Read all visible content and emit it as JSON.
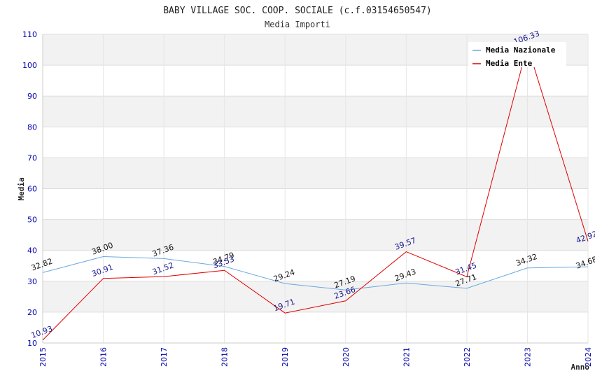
{
  "chart_data": {
    "type": "line",
    "title": "BABY VILLAGE SOC. COOP. SOCIALE (c.f.03154650547)",
    "subtitle": "Media Importi",
    "xlabel": "Anno",
    "ylabel": "Media",
    "x": [
      "2015",
      "2016",
      "2017",
      "2018",
      "2019",
      "2020",
      "2021",
      "2022",
      "2023",
      "2024"
    ],
    "ylim": [
      10,
      110
    ],
    "yticks": [
      10,
      20,
      30,
      40,
      50,
      60,
      70,
      80,
      90,
      100,
      110
    ],
    "ytick_labels": [
      "10",
      "20",
      "30",
      "40",
      "50",
      "60",
      "70",
      "80",
      "90",
      "100",
      "110"
    ],
    "grid": true,
    "legend_position": "top-right",
    "series": [
      {
        "name": "Media Nazionale",
        "color": "#6aa8e0",
        "values": [
          32.82,
          38.0,
          37.36,
          34.79,
          29.24,
          27.19,
          29.43,
          27.71,
          34.32,
          34.68
        ],
        "labels": [
          "32.82",
          "38.00",
          "37.36",
          "34.79",
          "29.24",
          "27.19",
          "29.43",
          "27.71",
          "34.32",
          "34.68"
        ]
      },
      {
        "name": "Media Ente",
        "color": "#e00000",
        "values": [
          10.93,
          30.91,
          31.52,
          33.53,
          19.71,
          23.66,
          39.57,
          31.45,
          106.33,
          42.92
        ],
        "labels": [
          "10.93",
          "30.91",
          "31.52",
          "33.53",
          "19.71",
          "23.66",
          "39.57",
          "31.45",
          "106.33",
          "42.92"
        ]
      }
    ]
  }
}
